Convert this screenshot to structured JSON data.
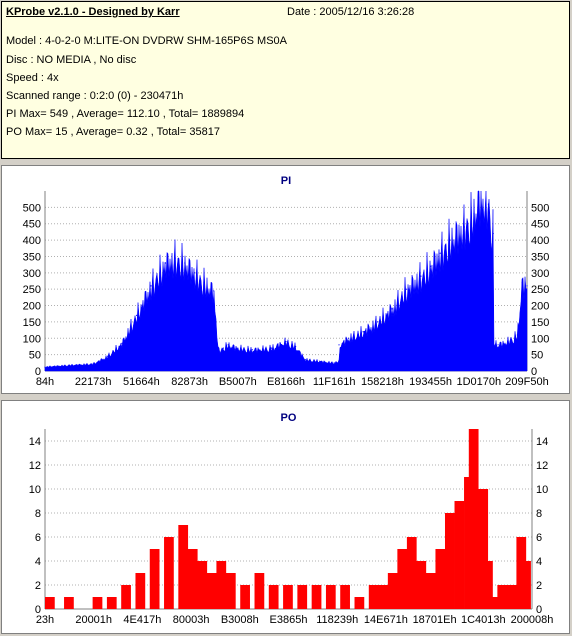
{
  "header": {
    "title": "KProbe v2.1.0 - Designed by Karr",
    "date": "Date : 2005/12/16 3:26:28",
    "lines": [
      "Model : 4-0-2-0 M:LITE-ON DVDRW SHM-165P6S MS0A",
      "Disc : NO MEDIA , No disc",
      "Speed : 4x",
      "Scanned range : 0:2:0 (0) - 230471h",
      "PI Max= 549 , Average= 112.10 , Total= 1889894",
      "PO Max= 15 , Average= 0.32 , Total= 35817"
    ]
  },
  "colors": {
    "pi_series": "#0000ff",
    "po_series": "#ff0000",
    "title_text": "#000080",
    "grid": "#b0b0b0"
  },
  "chart_data": [
    {
      "type": "area",
      "title": "PI",
      "xlabel": "",
      "ylabel": "",
      "ylim": [
        0,
        550
      ],
      "yticks": [
        0,
        50,
        100,
        150,
        200,
        250,
        300,
        350,
        400,
        450,
        500
      ],
      "xticks": [
        "84h",
        "22173h",
        "51664h",
        "82873h",
        "B5007h",
        "E8166h",
        "11F161h",
        "158218h",
        "193455h",
        "1D0170h",
        "209F50h"
      ],
      "grid": "horizontal dotted",
      "series": [
        {
          "x": [
            0,
            0.01,
            0.05,
            0.1,
            0.13,
            0.16,
            0.19,
            0.22,
            0.25,
            0.27,
            0.29,
            0.31,
            0.33,
            0.35,
            0.36,
            0.37,
            0.38,
            0.4,
            0.43,
            0.47,
            0.5,
            0.52,
            0.53,
            0.54,
            0.57,
            0.6,
            0.61,
            0.61,
            0.63,
            0.66,
            0.69,
            0.72,
            0.75,
            0.78,
            0.8,
            0.82,
            0.84,
            0.87,
            0.89,
            0.9,
            0.92,
            0.93,
            0.93,
            0.94,
            0.96,
            0.98,
            0.99,
            1
          ],
          "values": [
            12,
            14,
            18,
            22,
            45,
            85,
            170,
            260,
            330,
            345,
            330,
            300,
            270,
            245,
            60,
            70,
            80,
            70,
            65,
            70,
            90,
            75,
            55,
            35,
            30,
            25,
            30,
            80,
            100,
            120,
            150,
            190,
            250,
            290,
            320,
            360,
            400,
            440,
            480,
            530,
            510,
            420,
            90,
            80,
            90,
            110,
            270,
            260
          ]
        }
      ]
    },
    {
      "type": "bar",
      "title": "PO",
      "xlabel": "",
      "ylabel": "",
      "ylim": [
        0,
        15
      ],
      "yticks": [
        0,
        2,
        4,
        6,
        8,
        10,
        12,
        14
      ],
      "xticks": [
        "23h",
        "20001h",
        "4E417h",
        "80003h",
        "B3008h",
        "E3865h",
        "118239h",
        "14E671h",
        "18701Eh",
        "1C4013h",
        "200008h"
      ],
      "grid": "horizontal dotted",
      "series": [
        {
          "x": [
            0,
            0.02,
            0.04,
            0.06,
            0.1,
            0.13,
            0.16,
            0.19,
            0.22,
            0.25,
            0.28,
            0.3,
            0.32,
            0.34,
            0.36,
            0.38,
            0.41,
            0.44,
            0.47,
            0.5,
            0.53,
            0.56,
            0.59,
            0.62,
            0.65,
            0.68,
            0.7,
            0.72,
            0.74,
            0.76,
            0.78,
            0.8,
            0.82,
            0.84,
            0.86,
            0.88,
            0.89,
            0.9,
            0.91,
            0.92,
            0.93,
            0.95,
            0.97,
            0.99,
            1
          ],
          "values": [
            1,
            0,
            1,
            0,
            1,
            1,
            2,
            3,
            5,
            6,
            7,
            5,
            4,
            3,
            4,
            3,
            2,
            3,
            2,
            2,
            2,
            2,
            2,
            2,
            1,
            2,
            2,
            3,
            5,
            6,
            4,
            3,
            5,
            8,
            9,
            11,
            15,
            9,
            10,
            4,
            1,
            2,
            2,
            6,
            4
          ]
        }
      ]
    }
  ]
}
